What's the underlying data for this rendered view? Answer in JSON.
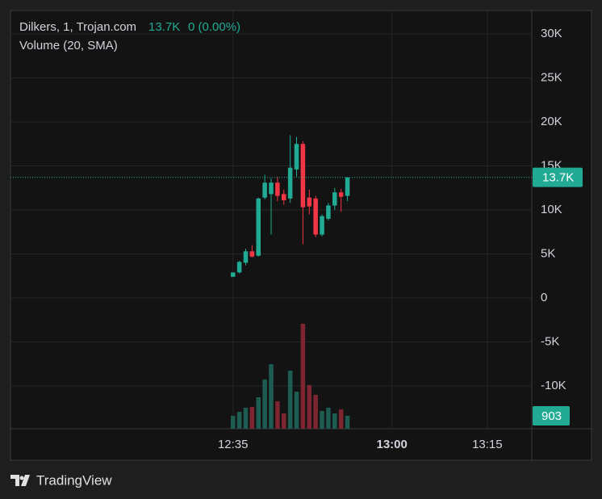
{
  "chart_data": {
    "type": "candlestick",
    "symbol": "Dilkers, 1, Trojan.com",
    "legend_price": "13.7K",
    "legend_change": "0 (0.00%)",
    "volume_title": "Volume (20, SMA)",
    "x": [
      "12:35",
      "12:36",
      "12:37",
      "12:38",
      "12:39",
      "12:40",
      "12:41",
      "12:42",
      "12:43",
      "12:44",
      "12:45",
      "12:46",
      "12:47",
      "12:48",
      "12:49",
      "12:50",
      "12:51",
      "12:52",
      "12:53"
    ],
    "open": [
      2400,
      2900,
      4000,
      5300,
      4800,
      11400,
      11800,
      13100,
      11800,
      11300,
      14600,
      17500,
      11400,
      11300,
      7200,
      9000,
      10500,
      12000,
      11600
    ],
    "high": [
      2900,
      4200,
      5600,
      6000,
      11400,
      14000,
      13600,
      13800,
      12300,
      18500,
      18300,
      17800,
      12300,
      11600,
      9500,
      10800,
      12500,
      12400,
      13700
    ],
    "low": [
      2400,
      2800,
      3700,
      4600,
      4700,
      11200,
      7200,
      11000,
      10600,
      10800,
      13800,
      6100,
      9500,
      6900,
      7000,
      8800,
      10000,
      9800,
      11000
    ],
    "close": [
      2900,
      4100,
      5300,
      4700,
      11300,
      13100,
      13100,
      11600,
      11100,
      14800,
      17500,
      10300,
      10400,
      7200,
      9300,
      10500,
      12000,
      11500,
      13700
    ],
    "volume": [
      903,
      1185,
      1470,
      1520,
      2200,
      3440,
      4510,
      1920,
      1070,
      4060,
      2590,
      7330,
      3050,
      2370,
      1240,
      1470,
      1070,
      1350,
      903
    ],
    "up_color": "#22ab94",
    "down_color": "#f23645",
    "volume_up_color": "#1e5b51",
    "volume_down_color": "#7d2530",
    "xlim": [
      "12:00",
      "13:22"
    ],
    "xticks": [
      "12:35",
      "13:00",
      "13:15"
    ],
    "bold_xtick": "13:00",
    "ylim": [
      -14860,
      32660
    ],
    "yticks": [
      {
        "value": 30000,
        "label": "30K"
      },
      {
        "value": 25000,
        "label": "25K"
      },
      {
        "value": 20000,
        "label": "20K"
      },
      {
        "value": 15000,
        "label": "15K"
      },
      {
        "value": 10000,
        "label": "10K"
      },
      {
        "value": 5000,
        "label": "5K"
      },
      0,
      {
        "value": -5000,
        "label": "-5K"
      },
      {
        "value": -10000,
        "label": "-10K"
      }
    ],
    "volume_ylim": [
      0,
      29200
    ],
    "last_price": {
      "value": 13700,
      "label": "13.7K"
    },
    "grid": true,
    "brand": "TradingView"
  }
}
